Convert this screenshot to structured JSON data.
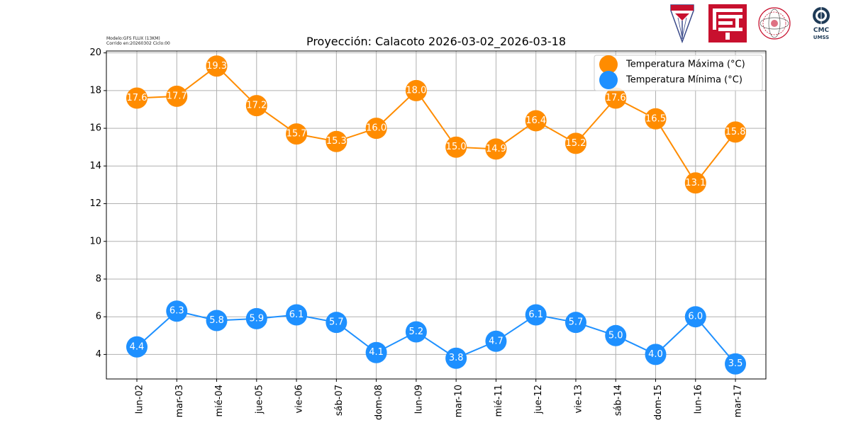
{
  "meta": {
    "model_line": "Modelo:GFS FLUX (13KM)",
    "run_line": "Corrido en:20260302 Ciclo:00"
  },
  "logos": {
    "umss_shield_text": "UMSS",
    "cmc_line1": "CMC",
    "cmc_line2": "UMSS"
  },
  "chart_data": {
    "type": "line",
    "title": "Proyección: Calacoto 2026-03-02_2026-03-18",
    "xlabel": "",
    "ylabel": "",
    "categories": [
      "lun-02",
      "mar-03",
      "mié-04",
      "jue-05",
      "vie-06",
      "sáb-07",
      "dom-08",
      "lun-09",
      "mar-10",
      "mié-11",
      "jue-12",
      "vie-13",
      "sáb-14",
      "dom-15",
      "lun-16",
      "mar-17"
    ],
    "ylim": [
      2.7,
      20.1
    ],
    "yticks": [
      4,
      6,
      8,
      10,
      12,
      14,
      16,
      18,
      20
    ],
    "grid": true,
    "legend_position": "top-right",
    "series": [
      {
        "name": "Temperatura Máxima  (°C)",
        "color": "#ff8c00",
        "values": [
          17.6,
          17.7,
          19.3,
          17.2,
          15.7,
          15.3,
          16.0,
          18.0,
          15.0,
          14.9,
          16.4,
          15.2,
          17.6,
          16.5,
          13.1,
          15.8
        ]
      },
      {
        "name": "Temperatura Mínima  (°C)",
        "color": "#1e90ff",
        "values": [
          4.4,
          6.3,
          5.8,
          5.9,
          6.1,
          5.7,
          4.1,
          5.2,
          3.8,
          4.7,
          6.1,
          5.7,
          5.0,
          4.0,
          6.0,
          3.5
        ]
      }
    ]
  }
}
